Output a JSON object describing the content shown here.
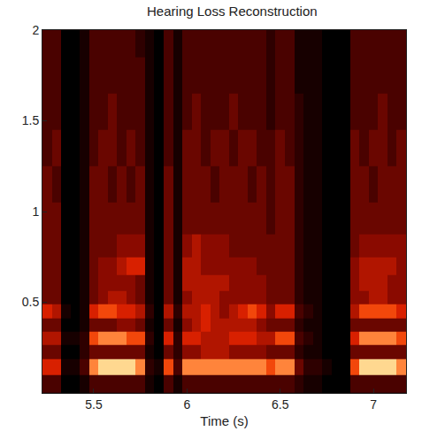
{
  "chart_data": {
    "type": "heatmap",
    "title": "Hearing Loss Reconstruction",
    "x_label": "Time (s)",
    "x": [
      5.25,
      5.3,
      5.35,
      5.4,
      5.45,
      5.5,
      5.55,
      5.6,
      5.65,
      5.7,
      5.75,
      5.8,
      5.85,
      5.9,
      5.95,
      6.0,
      6.05,
      6.1,
      6.15,
      6.2,
      6.25,
      6.3,
      6.35,
      6.4,
      6.45,
      6.5,
      6.55,
      6.6,
      6.65,
      6.7,
      6.75,
      6.8,
      6.85,
      6.9,
      6.95,
      7.0,
      7.05,
      7.1,
      7.15
    ],
    "y": [
      0.05,
      0.15,
      0.225,
      0.3,
      0.375,
      0.45,
      0.525,
      0.6,
      0.7,
      0.8,
      0.95,
      1.15,
      1.35,
      1.55,
      1.75,
      1.95
    ],
    "z": [
      [
        3,
        3,
        0,
        0,
        1,
        3,
        3,
        3,
        3,
        3,
        3,
        1,
        0,
        3,
        1,
        3,
        3,
        3,
        3,
        3,
        3,
        3,
        3,
        3,
        3,
        3,
        3,
        2,
        1,
        1,
        0,
        0,
        0,
        3,
        3,
        3,
        3,
        3,
        3
      ],
      [
        7,
        7,
        1,
        1,
        3,
        9,
        10,
        10,
        10,
        10,
        9,
        2,
        1,
        8,
        3,
        9,
        9,
        9,
        9,
        9,
        9,
        9,
        9,
        9,
        8,
        9,
        9,
        4,
        2,
        2,
        1,
        0,
        0,
        8,
        10,
        10,
        10,
        10,
        9
      ],
      [
        4,
        4,
        0,
        0,
        2,
        4,
        4,
        4,
        4,
        4,
        4,
        1,
        0,
        4,
        2,
        5,
        5,
        6,
        6,
        6,
        5,
        5,
        5,
        5,
        4,
        4,
        4,
        2,
        1,
        1,
        0,
        0,
        0,
        4,
        4,
        4,
        4,
        4,
        4
      ],
      [
        6,
        6,
        1,
        1,
        2,
        8,
        9,
        9,
        9,
        8,
        8,
        2,
        0,
        7,
        2,
        7,
        7,
        6,
        6,
        6,
        7,
        7,
        7,
        6,
        6,
        8,
        8,
        3,
        2,
        1,
        0,
        0,
        0,
        7,
        9,
        9,
        9,
        9,
        8
      ],
      [
        4,
        4,
        0,
        0,
        1,
        4,
        4,
        4,
        5,
        5,
        4,
        1,
        0,
        4,
        1,
        5,
        6,
        7,
        6,
        6,
        6,
        6,
        6,
        5,
        4,
        4,
        4,
        2,
        1,
        1,
        0,
        0,
        0,
        4,
        4,
        4,
        4,
        4,
        4
      ],
      [
        7,
        6,
        1,
        0,
        1,
        7,
        8,
        8,
        7,
        7,
        6,
        2,
        0,
        6,
        2,
        6,
        6,
        7,
        6,
        5,
        6,
        7,
        8,
        7,
        5,
        7,
        7,
        3,
        2,
        1,
        0,
        0,
        0,
        6,
        8,
        8,
        8,
        8,
        7
      ],
      [
        4,
        4,
        0,
        0,
        1,
        4,
        5,
        6,
        6,
        5,
        4,
        1,
        0,
        4,
        1,
        5,
        6,
        6,
        6,
        5,
        5,
        5,
        5,
        5,
        4,
        4,
        4,
        2,
        1,
        1,
        0,
        0,
        0,
        5,
        5,
        6,
        6,
        5,
        5
      ],
      [
        4,
        4,
        0,
        0,
        1,
        4,
        5,
        5,
        5,
        5,
        4,
        1,
        0,
        4,
        1,
        6,
        6,
        6,
        6,
        6,
        5,
        5,
        5,
        5,
        4,
        4,
        4,
        2,
        1,
        1,
        0,
        0,
        0,
        5,
        6,
        6,
        6,
        5,
        5
      ],
      [
        4,
        4,
        0,
        0,
        1,
        4,
        5,
        5,
        6,
        7,
        7,
        1,
        0,
        4,
        1,
        6,
        6,
        5,
        5,
        5,
        5,
        5,
        5,
        4,
        4,
        4,
        4,
        2,
        1,
        1,
        0,
        0,
        0,
        5,
        6,
        6,
        6,
        6,
        5
      ],
      [
        4,
        4,
        0,
        0,
        1,
        4,
        4,
        4,
        5,
        5,
        5,
        1,
        0,
        4,
        1,
        5,
        6,
        5,
        5,
        5,
        4,
        4,
        4,
        4,
        4,
        4,
        4,
        2,
        1,
        1,
        0,
        0,
        0,
        4,
        5,
        5,
        5,
        5,
        5
      ],
      [
        4,
        4,
        0,
        0,
        1,
        4,
        4,
        4,
        4,
        4,
        4,
        1,
        0,
        4,
        1,
        4,
        4,
        4,
        4,
        4,
        4,
        4,
        4,
        4,
        3,
        4,
        4,
        2,
        1,
        1,
        0,
        0,
        0,
        4,
        4,
        4,
        4,
        4,
        4
      ],
      [
        4,
        3,
        0,
        0,
        1,
        4,
        4,
        3,
        4,
        3,
        4,
        1,
        0,
        4,
        1,
        4,
        4,
        4,
        3,
        4,
        4,
        4,
        3,
        4,
        3,
        4,
        4,
        2,
        1,
        1,
        0,
        0,
        0,
        4,
        4,
        3,
        4,
        4,
        4
      ],
      [
        3,
        4,
        0,
        0,
        1,
        3,
        4,
        4,
        3,
        4,
        3,
        1,
        0,
        3,
        1,
        4,
        4,
        3,
        4,
        4,
        3,
        4,
        4,
        3,
        3,
        4,
        3,
        2,
        1,
        1,
        0,
        0,
        0,
        4,
        3,
        4,
        4,
        3,
        4
      ],
      [
        3,
        3,
        0,
        0,
        1,
        3,
        3,
        4,
        3,
        3,
        3,
        1,
        0,
        3,
        1,
        3,
        4,
        3,
        3,
        3,
        4,
        3,
        3,
        3,
        2,
        3,
        3,
        2,
        1,
        1,
        0,
        0,
        0,
        3,
        3,
        3,
        4,
        3,
        3
      ],
      [
        3,
        3,
        0,
        0,
        1,
        3,
        3,
        3,
        3,
        3,
        3,
        1,
        0,
        3,
        1,
        3,
        3,
        3,
        3,
        3,
        3,
        3,
        3,
        3,
        2,
        3,
        3,
        1,
        1,
        1,
        0,
        0,
        0,
        3,
        3,
        3,
        3,
        3,
        3
      ],
      [
        3,
        3,
        0,
        0,
        1,
        3,
        3,
        3,
        3,
        3,
        2,
        1,
        0,
        3,
        1,
        3,
        3,
        3,
        3,
        3,
        3,
        3,
        3,
        3,
        2,
        3,
        3,
        1,
        1,
        1,
        0,
        0,
        0,
        3,
        3,
        3,
        3,
        3,
        3
      ]
    ],
    "zlim": [
      0,
      10
    ],
    "xlim": [
      5.225,
      7.175
    ],
    "xticks": [
      5.5,
      6,
      6.5,
      7
    ],
    "ylim": [
      0,
      2
    ],
    "yticks": [
      0.5,
      1,
      1.5,
      2
    ],
    "grid": false
  }
}
